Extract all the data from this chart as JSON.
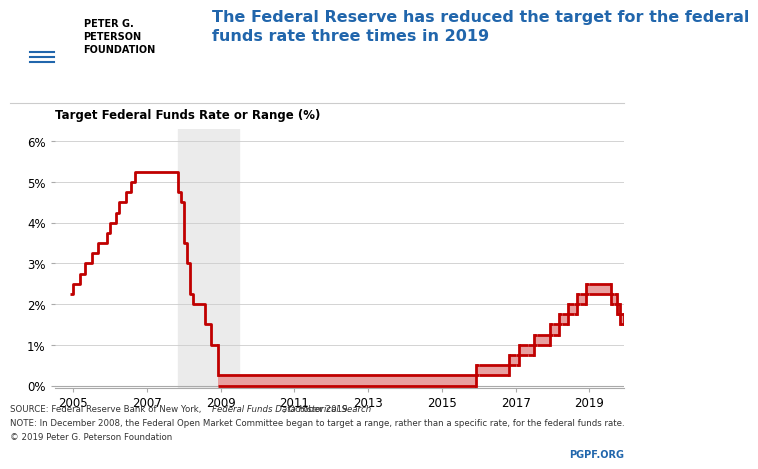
{
  "title": "The Federal Reserve has reduced the target for the federal\nfunds rate three times in 2019",
  "subtitle": "Target Federal Funds Rate or Range (%)",
  "source_line1": "SOURCE: Federal Reserve Bank of New York, ",
  "source_italic": "Federal Funds Data Historical Search",
  "source_line1_end": ", October 2019.",
  "source_line2": "NOTE: In December 2008, the Federal Open Market Committee began to target a range, rather than a specific rate, for the federal funds rate.",
  "source_line3": "© 2019 Peter G. Peterson Foundation",
  "pgpf_text": "PGPF.ORG",
  "line_color": "#c00000",
  "range_fill_color": "#e8a0a0",
  "recession_fill_color": "#ebebeb",
  "xlim": [
    2004.5,
    2019.95
  ],
  "ylim": [
    -0.05,
    6.3
  ],
  "xticks": [
    2005,
    2007,
    2009,
    2011,
    2013,
    2015,
    2017,
    2019
  ],
  "yticks": [
    0,
    1,
    2,
    3,
    4,
    5,
    6
  ],
  "ytick_labels": [
    "0%",
    "1%",
    "2%",
    "3%",
    "4%",
    "5%",
    "6%"
  ],
  "recession_start": 2007.83,
  "recession_end": 2009.5,
  "single_rate_data": [
    [
      2004.92,
      2.25
    ],
    [
      2005.0,
      2.5
    ],
    [
      2005.17,
      2.75
    ],
    [
      2005.33,
      3.0
    ],
    [
      2005.5,
      3.25
    ],
    [
      2005.67,
      3.5
    ],
    [
      2005.92,
      3.75
    ],
    [
      2006.0,
      4.0
    ],
    [
      2006.17,
      4.25
    ],
    [
      2006.25,
      4.5
    ],
    [
      2006.42,
      4.75
    ],
    [
      2006.58,
      5.0
    ],
    [
      2006.67,
      5.25
    ],
    [
      2007.75,
      5.25
    ],
    [
      2007.83,
      4.75
    ],
    [
      2007.92,
      4.5
    ],
    [
      2008.0,
      3.5
    ],
    [
      2008.08,
      3.0
    ],
    [
      2008.17,
      2.25
    ],
    [
      2008.25,
      2.0
    ],
    [
      2008.42,
      2.0
    ],
    [
      2008.58,
      1.5
    ],
    [
      2008.75,
      1.0
    ],
    [
      2008.92,
      1.0
    ]
  ],
  "range_segments": [
    {
      "x0": 2008.92,
      "x1": 2015.92,
      "lo": 0.0,
      "hi": 0.25
    },
    {
      "x0": 2015.92,
      "x1": 2016.0,
      "lo": 0.25,
      "hi": 0.5
    },
    {
      "x0": 2016.0,
      "x1": 2016.83,
      "lo": 0.25,
      "hi": 0.5
    },
    {
      "x0": 2016.83,
      "x1": 2017.0,
      "lo": 0.5,
      "hi": 0.75
    },
    {
      "x0": 2017.0,
      "x1": 2017.08,
      "lo": 0.5,
      "hi": 0.75
    },
    {
      "x0": 2017.08,
      "x1": 2017.33,
      "lo": 0.75,
      "hi": 1.0
    },
    {
      "x0": 2017.33,
      "x1": 2017.5,
      "lo": 0.75,
      "hi": 1.0
    },
    {
      "x0": 2017.5,
      "x1": 2017.58,
      "lo": 1.0,
      "hi": 1.25
    },
    {
      "x0": 2017.58,
      "x1": 2017.92,
      "lo": 1.0,
      "hi": 1.25
    },
    {
      "x0": 2017.92,
      "x1": 2018.0,
      "lo": 1.25,
      "hi": 1.5
    },
    {
      "x0": 2018.0,
      "x1": 2018.17,
      "lo": 1.25,
      "hi": 1.5
    },
    {
      "x0": 2018.17,
      "x1": 2018.25,
      "lo": 1.5,
      "hi": 1.75
    },
    {
      "x0": 2018.25,
      "x1": 2018.42,
      "lo": 1.5,
      "hi": 1.75
    },
    {
      "x0": 2018.42,
      "x1": 2018.58,
      "lo": 1.75,
      "hi": 2.0
    },
    {
      "x0": 2018.58,
      "x1": 2018.67,
      "lo": 1.75,
      "hi": 2.0
    },
    {
      "x0": 2018.67,
      "x1": 2018.75,
      "lo": 2.0,
      "hi": 2.25
    },
    {
      "x0": 2018.75,
      "x1": 2018.92,
      "lo": 2.0,
      "hi": 2.25
    },
    {
      "x0": 2018.92,
      "x1": 2019.0,
      "lo": 2.25,
      "hi": 2.5
    },
    {
      "x0": 2019.0,
      "x1": 2019.58,
      "lo": 2.25,
      "hi": 2.5
    },
    {
      "x0": 2019.58,
      "x1": 2019.67,
      "lo": 2.0,
      "hi": 2.25
    },
    {
      "x0": 2019.67,
      "x1": 2019.75,
      "lo": 2.0,
      "hi": 2.25
    },
    {
      "x0": 2019.75,
      "x1": 2019.83,
      "lo": 1.75,
      "hi": 2.0
    },
    {
      "x0": 2019.83,
      "x1": 2019.95,
      "lo": 1.5,
      "hi": 1.75
    }
  ]
}
